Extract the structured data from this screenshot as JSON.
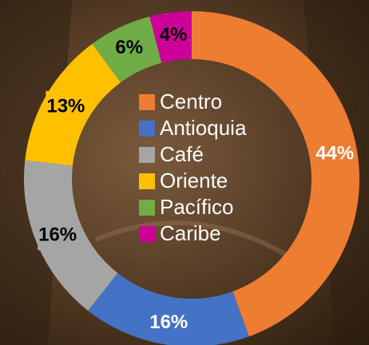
{
  "chart_data": {
    "type": "donut",
    "categories": [
      "Centro",
      "Antioquia",
      "Café",
      "Oriente",
      "Pacífico",
      "Caribe"
    ],
    "values": [
      44,
      16,
      16,
      13,
      6,
      4
    ],
    "value_labels": [
      "44%",
      "16%",
      "16%",
      "13%",
      "6%",
      "4%"
    ],
    "colors": [
      "#ed7d31",
      "#4472c4",
      "#a5a5a5",
      "#ffc000",
      "#70ad47",
      "#cc0099"
    ],
    "label_text_colors": [
      "#ffffff",
      "#ffffff",
      "#000000",
      "#000000",
      "#000000",
      "#000000"
    ],
    "legend": "center"
  }
}
